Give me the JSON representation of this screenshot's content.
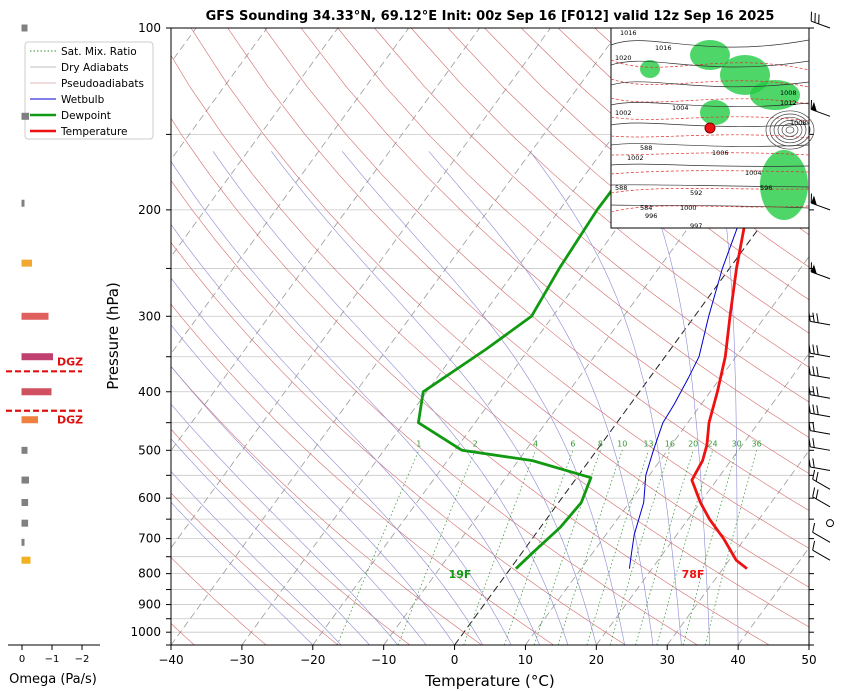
{
  "title": "GFS Sounding 34.33°N, 69.12°E Init: 00z Sep 16 [F012] valid 12z Sep 16 2025",
  "chart_data": {
    "type": "skew-t",
    "title": "GFS Sounding 34.33°N, 69.12°E Init: 00z Sep 16 [F012] valid 12z Sep 16 2025",
    "xlabel": "Temperature (°C)",
    "ylabel": "Pressure (hPa)",
    "xlim": [
      -40,
      50
    ],
    "ylim": [
      1050,
      100
    ],
    "y_scale": "log",
    "grid": true,
    "legend_position": "top-left",
    "x_ticks": [
      -40,
      -30,
      -20,
      -10,
      0,
      10,
      20,
      30,
      40,
      50
    ],
    "y_ticks": [
      100,
      200,
      300,
      400,
      500,
      600,
      700,
      800,
      900,
      1000
    ],
    "legend": [
      "Sat. Mix. Ratio",
      "Dry Adiabats",
      "Pseudoadiabats",
      "Wetbulb",
      "Dewpoint",
      "Temperature"
    ],
    "colors": {
      "temperature": "#ee1111",
      "dewpoint": "#119911",
      "wetbulb": "#0000cc",
      "dry_adiabat": "#d46a6a",
      "pseudoadiabat": "#8a8ad4",
      "mixing_ratio": "#2e8b2e",
      "isotherm": "#888888",
      "zero_isotherm": "#222222"
    },
    "series": [
      {
        "name": "Temperature",
        "points": [
          [
            33.4,
            785
          ],
          [
            31,
            760
          ],
          [
            27,
            700
          ],
          [
            23,
            650
          ],
          [
            20,
            610
          ],
          [
            16.5,
            560
          ],
          [
            16,
            520
          ],
          [
            15,
            490
          ],
          [
            13,
            450
          ],
          [
            11,
            400
          ],
          [
            8.5,
            350
          ],
          [
            5,
            300
          ],
          [
            1,
            250
          ],
          [
            -3.5,
            200
          ],
          [
            -7.5,
            160
          ],
          [
            -8.5,
            145
          ],
          [
            -9,
            130
          ],
          [
            -9.5,
            115
          ],
          [
            -10,
            100
          ]
        ]
      },
      {
        "name": "Dewpoint",
        "points": [
          [
            0.8,
            785
          ],
          [
            1.5,
            740
          ],
          [
            2.8,
            670
          ],
          [
            3.2,
            610
          ],
          [
            2,
            555
          ],
          [
            -8,
            520
          ],
          [
            -19,
            500
          ],
          [
            -28,
            450
          ],
          [
            -30.5,
            400
          ],
          [
            -26,
            340
          ],
          [
            -23,
            300
          ],
          [
            -24,
            250
          ],
          [
            -24.7,
            200
          ],
          [
            -24.5,
            160
          ],
          [
            -24,
            145
          ],
          [
            -23,
            125
          ],
          [
            -20,
            100
          ]
        ]
      },
      {
        "name": "Wetbulb",
        "points": [
          [
            16.8,
            785
          ],
          [
            15.5,
            740
          ],
          [
            14,
            690
          ],
          [
            12,
            610
          ],
          [
            9.5,
            550
          ],
          [
            8,
            500
          ],
          [
            6.5,
            450
          ],
          [
            6.2,
            420
          ],
          [
            5.5,
            380
          ],
          [
            4.8,
            350
          ],
          [
            2,
            300
          ],
          [
            -1,
            250
          ],
          [
            -4,
            200
          ],
          [
            -7.5,
            160
          ]
        ]
      }
    ],
    "mixing_ratio_labels": [
      "1",
      "2",
      "4",
      "6",
      "8",
      "10",
      "13",
      "16",
      "20",
      "24",
      "30",
      "36"
    ],
    "surface_labels": {
      "temperature": "78F",
      "dewpoint": "19F"
    },
    "dgz_label": "DGZ",
    "omega": {
      "xlabel": "Omega (Pa/s)",
      "x_ticks": [
        "0",
        "−1",
        "−2"
      ],
      "bars": [
        {
          "p": 100,
          "v": -0.2,
          "c": "#808080"
        },
        {
          "p": 140,
          "v": -0.25,
          "c": "#808080"
        },
        {
          "p": 195,
          "v": -0.05,
          "c": "#808080"
        },
        {
          "p": 245,
          "v": -0.35,
          "c": "#f0a830"
        },
        {
          "p": 300,
          "v": -0.9,
          "c": "#e06060"
        },
        {
          "p": 350,
          "v": -1.05,
          "c": "#c04070"
        },
        {
          "p": 400,
          "v": -1.0,
          "c": "#d05060"
        },
        {
          "p": 445,
          "v": -0.55,
          "c": "#f08040"
        },
        {
          "p": 500,
          "v": -0.2,
          "c": "#808080"
        },
        {
          "p": 560,
          "v": -0.25,
          "c": "#808080"
        },
        {
          "p": 610,
          "v": -0.22,
          "c": "#808080"
        },
        {
          "p": 660,
          "v": -0.22,
          "c": "#808080"
        },
        {
          "p": 710,
          "v": -0.05,
          "c": "#808080"
        },
        {
          "p": 760,
          "v": -0.3,
          "c": "#f0b020"
        }
      ],
      "dgz_pressures": [
        370,
        430
      ]
    },
    "inset_map": {
      "labels": [
        "1016",
        "1016",
        "1020",
        "1008",
        "1012",
        "1004",
        "1008",
        "1002",
        "1004",
        "1006",
        "1002",
        "996",
        "1000",
        "997",
        "588",
        "588",
        "584",
        "592",
        "596"
      ]
    }
  }
}
